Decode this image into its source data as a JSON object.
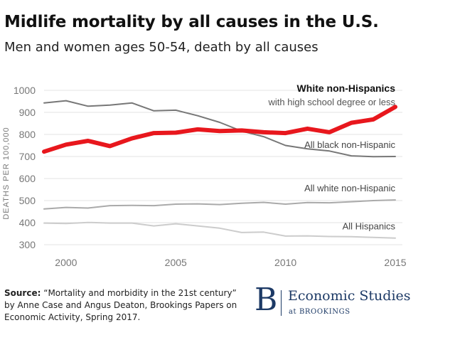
{
  "header": {
    "title": "Midlife mortality by all causes in the U.S.",
    "subtitle": "Men and women ages 50-54, death by all causes"
  },
  "source": {
    "label": "Source:",
    "text": "“Mortality and morbidity in the 21st century” by Anne Case and Angus Deaton, Brookings Papers on Economic Activity, Spring 2017."
  },
  "logo": {
    "letter": "B",
    "name": "Economic Studies",
    "sub": "at BROOKINGS",
    "color": "#1d3a66"
  },
  "chart_data": {
    "type": "line",
    "title": "Midlife mortality by all causes in the U.S.",
    "subtitle": "Men and women ages 50-54, death by all causes",
    "xlabel": "",
    "ylabel": "DEATHS PER 100,000",
    "xlim": [
      1999,
      2015
    ],
    "ylim": [
      300,
      1000
    ],
    "x_ticks": [
      2000,
      2005,
      2010,
      2015
    ],
    "y_ticks": [
      300,
      400,
      500,
      600,
      700,
      800,
      900,
      1000
    ],
    "grid": true,
    "legend": "direct labels at right end of each line",
    "x": [
      1999,
      2000,
      2001,
      2002,
      2003,
      2004,
      2005,
      2006,
      2007,
      2008,
      2009,
      2010,
      2011,
      2012,
      2013,
      2014,
      2015
    ],
    "series": [
      {
        "name": "All black non-Hispanic",
        "color": "#777777",
        "values": [
          943,
          953,
          928,
          933,
          943,
          907,
          910,
          885,
          855,
          815,
          790,
          750,
          735,
          725,
          703,
          699,
          700
        ]
      },
      {
        "name": "White non-Hispanics",
        "name_note": "with high school degree or less",
        "color": "#e8171d",
        "highlight": true,
        "values": [
          722,
          754,
          771,
          747,
          782,
          806,
          808,
          823,
          815,
          818,
          810,
          806,
          826,
          810,
          853,
          868,
          925
        ]
      },
      {
        "name": "All white non-Hispanic",
        "color": "#aaaaaa",
        "values": [
          462,
          469,
          466,
          477,
          478,
          477,
          484,
          485,
          482,
          488,
          492,
          484,
          491,
          490,
          495,
          500,
          503
        ]
      },
      {
        "name": "All Hispanics",
        "color": "#cccccc",
        "values": [
          398,
          396,
          401,
          398,
          398,
          385,
          395,
          385,
          375,
          355,
          357,
          339,
          340,
          337,
          336,
          333,
          330
        ]
      }
    ]
  }
}
